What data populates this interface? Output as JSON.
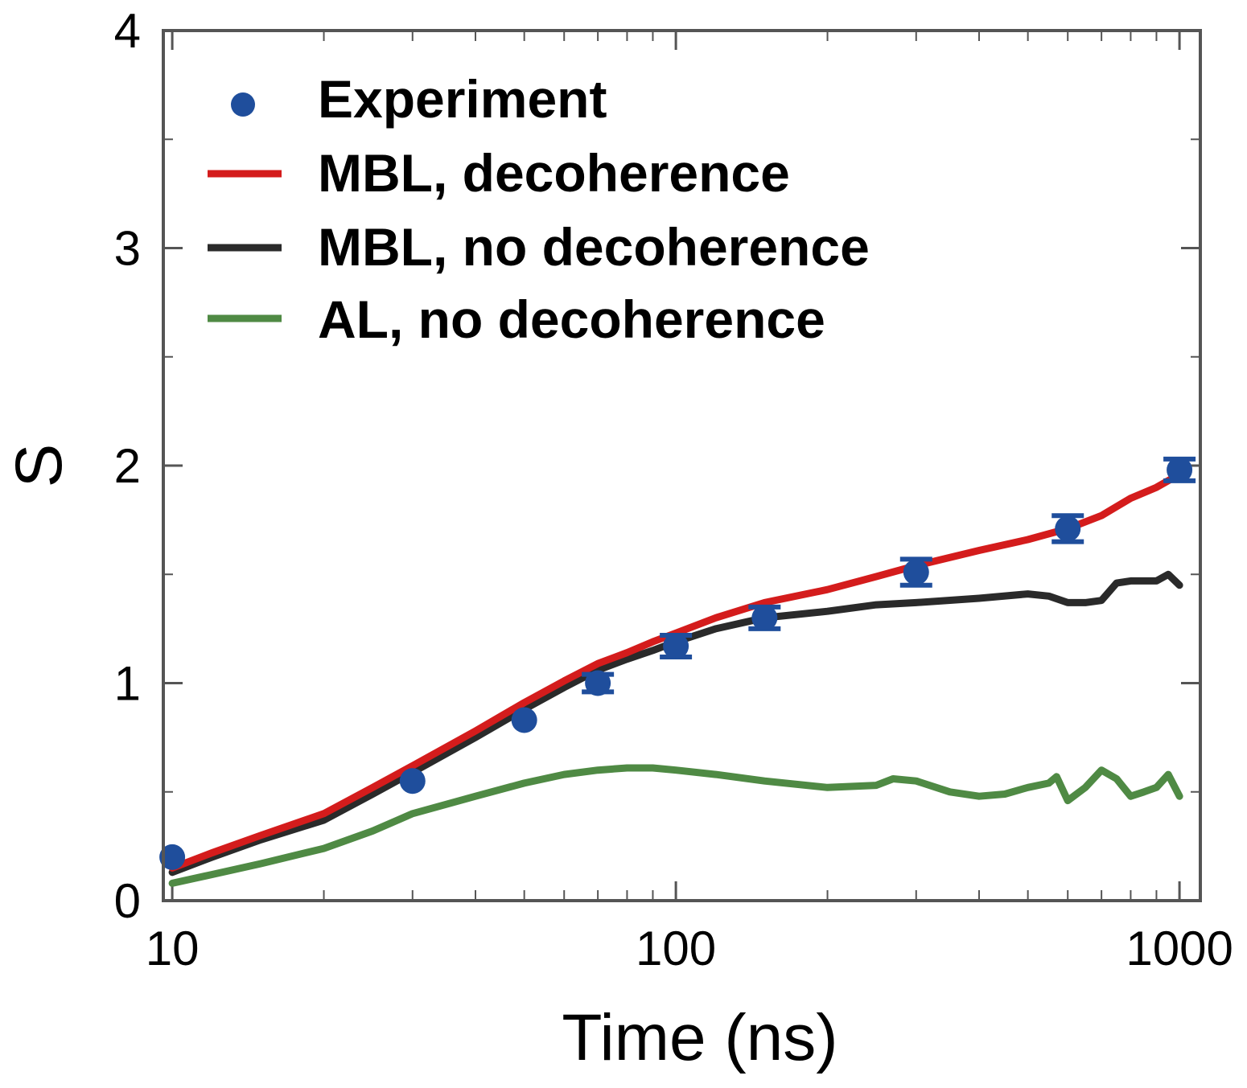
{
  "chart_data": {
    "type": "line",
    "title": "",
    "xlabel": "Time (ns)",
    "ylabel": "S",
    "xscale": "log",
    "xlim": [
      9.6,
      1100
    ],
    "ylim": [
      0,
      4
    ],
    "x_ticks": [
      {
        "value": 10,
        "label": "10"
      },
      {
        "value": 100,
        "label": "100"
      },
      {
        "value": 1000,
        "label": "1000"
      }
    ],
    "y_ticks": [
      {
        "value": 0,
        "label": "0"
      },
      {
        "value": 1,
        "label": "1"
      },
      {
        "value": 2,
        "label": "2"
      },
      {
        "value": 3,
        "label": "3"
      },
      {
        "value": 4,
        "label": "4"
      }
    ],
    "grid": false,
    "legend": {
      "position": "top-left"
    },
    "series": [
      {
        "name": "Experiment",
        "kind": "scatter",
        "color": "#1f4e9c",
        "points": [
          {
            "x": 10,
            "y": 0.2,
            "err": 0
          },
          {
            "x": 30,
            "y": 0.55,
            "err": 0
          },
          {
            "x": 50,
            "y": 0.83,
            "err": 0
          },
          {
            "x": 70,
            "y": 1.0,
            "err": 0.04
          },
          {
            "x": 100,
            "y": 1.17,
            "err": 0.05
          },
          {
            "x": 150,
            "y": 1.3,
            "err": 0.05
          },
          {
            "x": 300,
            "y": 1.51,
            "err": 0.06
          },
          {
            "x": 600,
            "y": 1.71,
            "err": 0.06
          },
          {
            "x": 1000,
            "y": 1.98,
            "err": 0.05
          }
        ]
      },
      {
        "name": "MBL, decoherence",
        "kind": "line",
        "color": "#d41c1c",
        "x": [
          10,
          12,
          15,
          20,
          25,
          30,
          40,
          50,
          60,
          70,
          80,
          90,
          100,
          120,
          150,
          200,
          250,
          300,
          400,
          500,
          600,
          700,
          800,
          900,
          1000
        ],
        "y": [
          0.15,
          0.22,
          0.3,
          0.4,
          0.52,
          0.62,
          0.78,
          0.91,
          1.01,
          1.09,
          1.14,
          1.19,
          1.23,
          1.3,
          1.37,
          1.43,
          1.49,
          1.54,
          1.61,
          1.66,
          1.71,
          1.77,
          1.85,
          1.9,
          1.96
        ]
      },
      {
        "name": "MBL, no decoherence",
        "kind": "line",
        "color": "#2a2a2a",
        "x": [
          10,
          12,
          15,
          20,
          25,
          30,
          40,
          50,
          60,
          70,
          80,
          90,
          100,
          120,
          150,
          200,
          250,
          300,
          400,
          500,
          550,
          600,
          650,
          700,
          750,
          800,
          900,
          950,
          1000
        ],
        "y": [
          0.13,
          0.2,
          0.28,
          0.37,
          0.49,
          0.59,
          0.75,
          0.88,
          0.98,
          1.06,
          1.11,
          1.15,
          1.19,
          1.25,
          1.3,
          1.33,
          1.36,
          1.37,
          1.39,
          1.41,
          1.4,
          1.37,
          1.37,
          1.38,
          1.46,
          1.47,
          1.47,
          1.5,
          1.45
        ]
      },
      {
        "name": "AL, no decoherence",
        "kind": "line",
        "color": "#4f8a44",
        "x": [
          10,
          12,
          15,
          20,
          25,
          30,
          40,
          50,
          60,
          70,
          80,
          90,
          100,
          120,
          150,
          200,
          250,
          270,
          300,
          350,
          400,
          450,
          500,
          550,
          570,
          600,
          650,
          700,
          750,
          800,
          850,
          900,
          950,
          1000
        ],
        "y": [
          0.08,
          0.12,
          0.17,
          0.24,
          0.32,
          0.4,
          0.48,
          0.54,
          0.58,
          0.6,
          0.61,
          0.61,
          0.6,
          0.58,
          0.55,
          0.52,
          0.53,
          0.56,
          0.55,
          0.5,
          0.48,
          0.49,
          0.52,
          0.54,
          0.57,
          0.46,
          0.52,
          0.6,
          0.56,
          0.48,
          0.5,
          0.52,
          0.58,
          0.48
        ]
      }
    ]
  }
}
